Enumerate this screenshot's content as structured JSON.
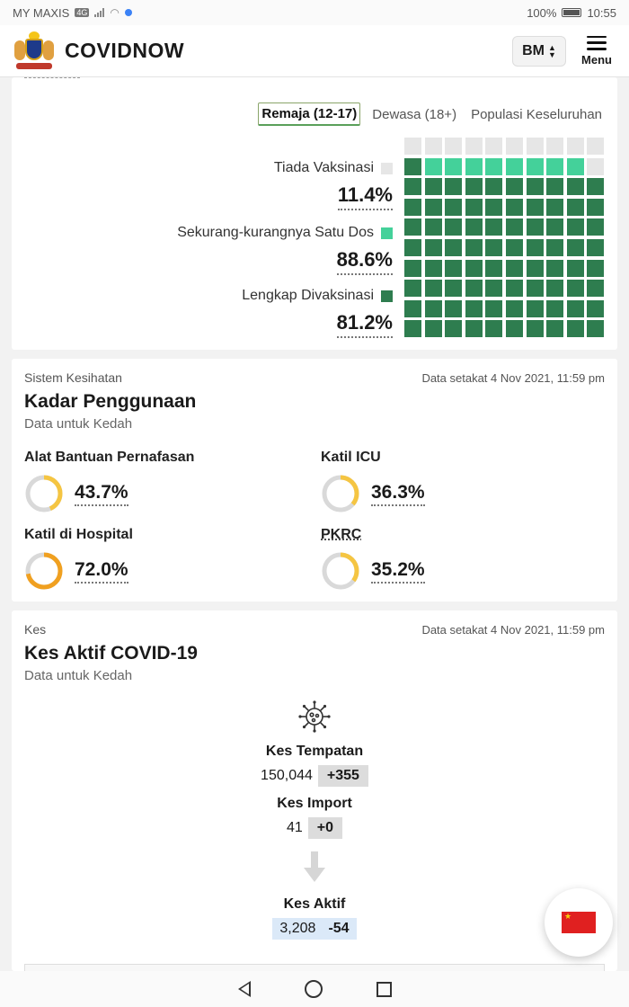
{
  "status": {
    "carrier": "MY MAXIS",
    "net": "4G",
    "battery": "100%",
    "time": "10:55"
  },
  "app": {
    "brand": "COVIDNOW",
    "lang": "BM",
    "menu_label": "Menu",
    "icons": [
      "malaysia-crest-icon",
      "hamburger-icon",
      "chevron-updown-icon"
    ]
  },
  "vaccination": {
    "tabs": [
      "Remaja (12-17)",
      "Dewasa (18+)",
      "Populasi Keseluruhan"
    ],
    "active_tab": 0,
    "colors": {
      "none": "#e6e6e6",
      "partial": "#44d19a",
      "full": "#2e7d4f"
    },
    "stats": [
      {
        "label": "Tiada Vaksinasi",
        "value": "11.4%",
        "fraction": 0.114
      },
      {
        "label": "Sekurang-kurangnya Satu Dos",
        "value": "88.6%",
        "fraction": 0.886
      },
      {
        "label": "Lengkap Divaksinasi",
        "value": "81.2%",
        "fraction": 0.812
      }
    ]
  },
  "utilization": {
    "section": "Sistem Kesihatan",
    "stamp": "Data setakat 4 Nov 2021, 11:59 pm",
    "title": "Kadar Penggunaan",
    "subtitle": "Data untuk Kedah",
    "metrics": [
      {
        "label": "Alat Bantuan Pernafasan",
        "value": "43.7%",
        "fraction": 0.437,
        "color": "#f5c542"
      },
      {
        "label": "Katil ICU",
        "value": "36.3%",
        "fraction": 0.363,
        "color": "#f5c542"
      },
      {
        "label": "Katil di Hospital",
        "value": "72.0%",
        "fraction": 0.72,
        "color": "#f0a020"
      },
      {
        "label": "PKRC",
        "value": "35.2%",
        "fraction": 0.352,
        "color": "#f5c542"
      }
    ]
  },
  "cases": {
    "section": "Kes",
    "stamp": "Data setakat 4 Nov 2021, 11:59 pm",
    "title": "Kes Aktif COVID-19",
    "subtitle": "Data untuk Kedah",
    "local": {
      "label": "Kes Tempatan",
      "value": "150,044",
      "delta": "+355"
    },
    "import": {
      "label": "Kes Import",
      "value": "41",
      "delta": "+0"
    },
    "active": {
      "label": "Kes Aktif",
      "value": "3,208",
      "delta": "-54"
    },
    "icons": [
      "virus-icon",
      "down-arrow-icon",
      "china-flag-icon"
    ]
  }
}
